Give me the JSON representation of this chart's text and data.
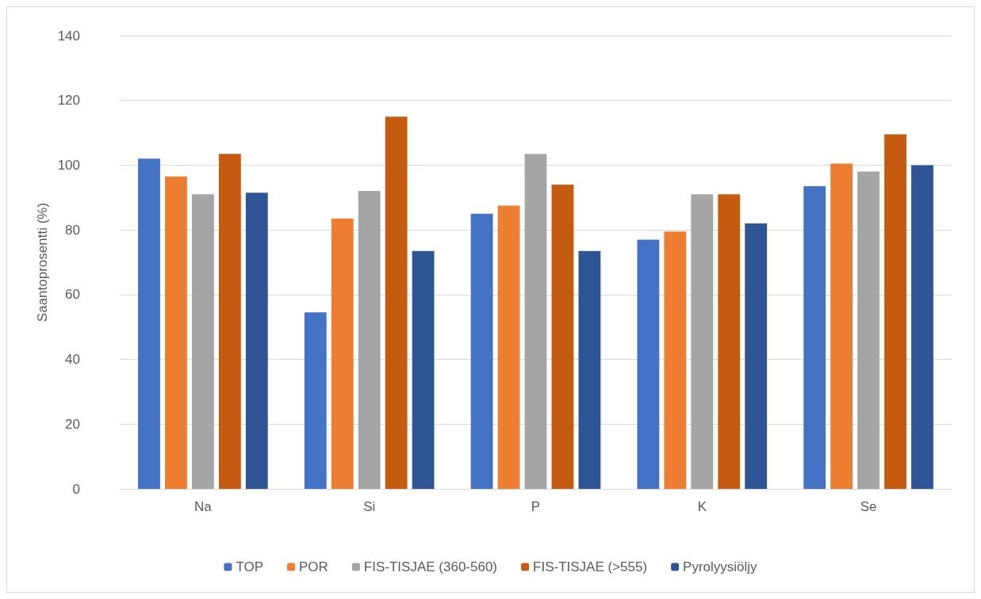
{
  "chart_data": {
    "type": "bar",
    "ylabel": "Saantoprosentti (%)",
    "categories": [
      "Na",
      "Si",
      "P",
      "K",
      "Se"
    ],
    "series": [
      {
        "name": "TOP",
        "color": "#4472c4",
        "values": [
          102,
          54.5,
          85,
          77,
          93.5
        ]
      },
      {
        "name": "POR",
        "color": "#ed7d31",
        "values": [
          96.5,
          83.5,
          87.5,
          79.5,
          100.5
        ]
      },
      {
        "name": "FIS-TISJAE (360-560)",
        "color": "#a5a5a5",
        "values": [
          91,
          92,
          103.5,
          91,
          98
        ]
      },
      {
        "name": "FIS-TISJAE (>555)",
        "color": "#c55a11",
        "values": [
          103.5,
          115,
          94,
          91,
          109.5
        ]
      },
      {
        "name": "Pyrolyysiöljy",
        "color": "#2f5597",
        "values": [
          91.5,
          73.5,
          73.5,
          82,
          100
        ]
      }
    ],
    "ylim": [
      0,
      140
    ],
    "yticks": [
      0,
      20,
      40,
      60,
      80,
      100,
      120,
      140
    ],
    "grid": "y",
    "legend": "bottom"
  }
}
